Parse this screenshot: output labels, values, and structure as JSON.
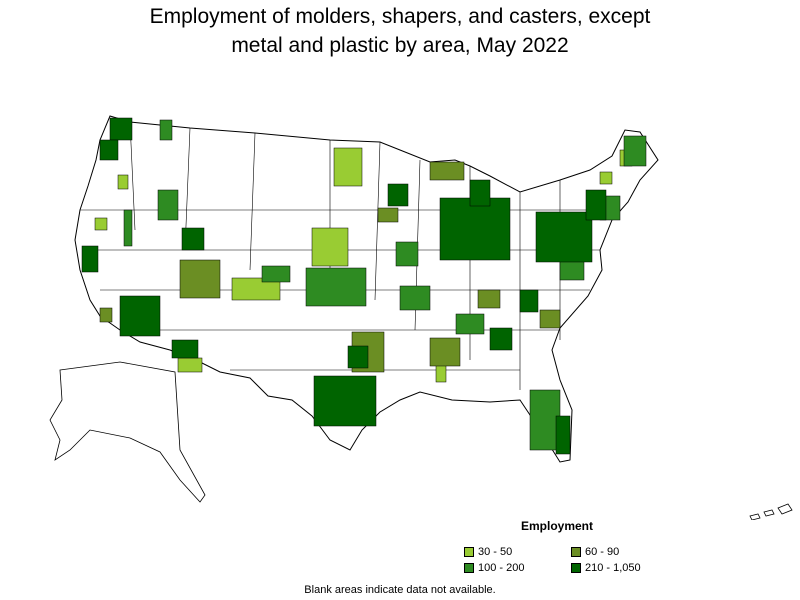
{
  "title_line1": "Employment of molders, shapers, and casters, except",
  "title_line2": "metal and plastic by area, May 2022",
  "legend": {
    "title": "Employment",
    "items": [
      {
        "label": "30 - 50",
        "color": "#99cc33"
      },
      {
        "label": "60 - 90",
        "color": "#6b8e23"
      },
      {
        "label": "100 - 200",
        "color": "#2e8b22"
      },
      {
        "label": "210 - 1,050",
        "color": "#006400"
      }
    ]
  },
  "footnote": "Blank areas indicate data not available.",
  "colors": {
    "blank": "#ffffff",
    "border": "#000000"
  }
}
